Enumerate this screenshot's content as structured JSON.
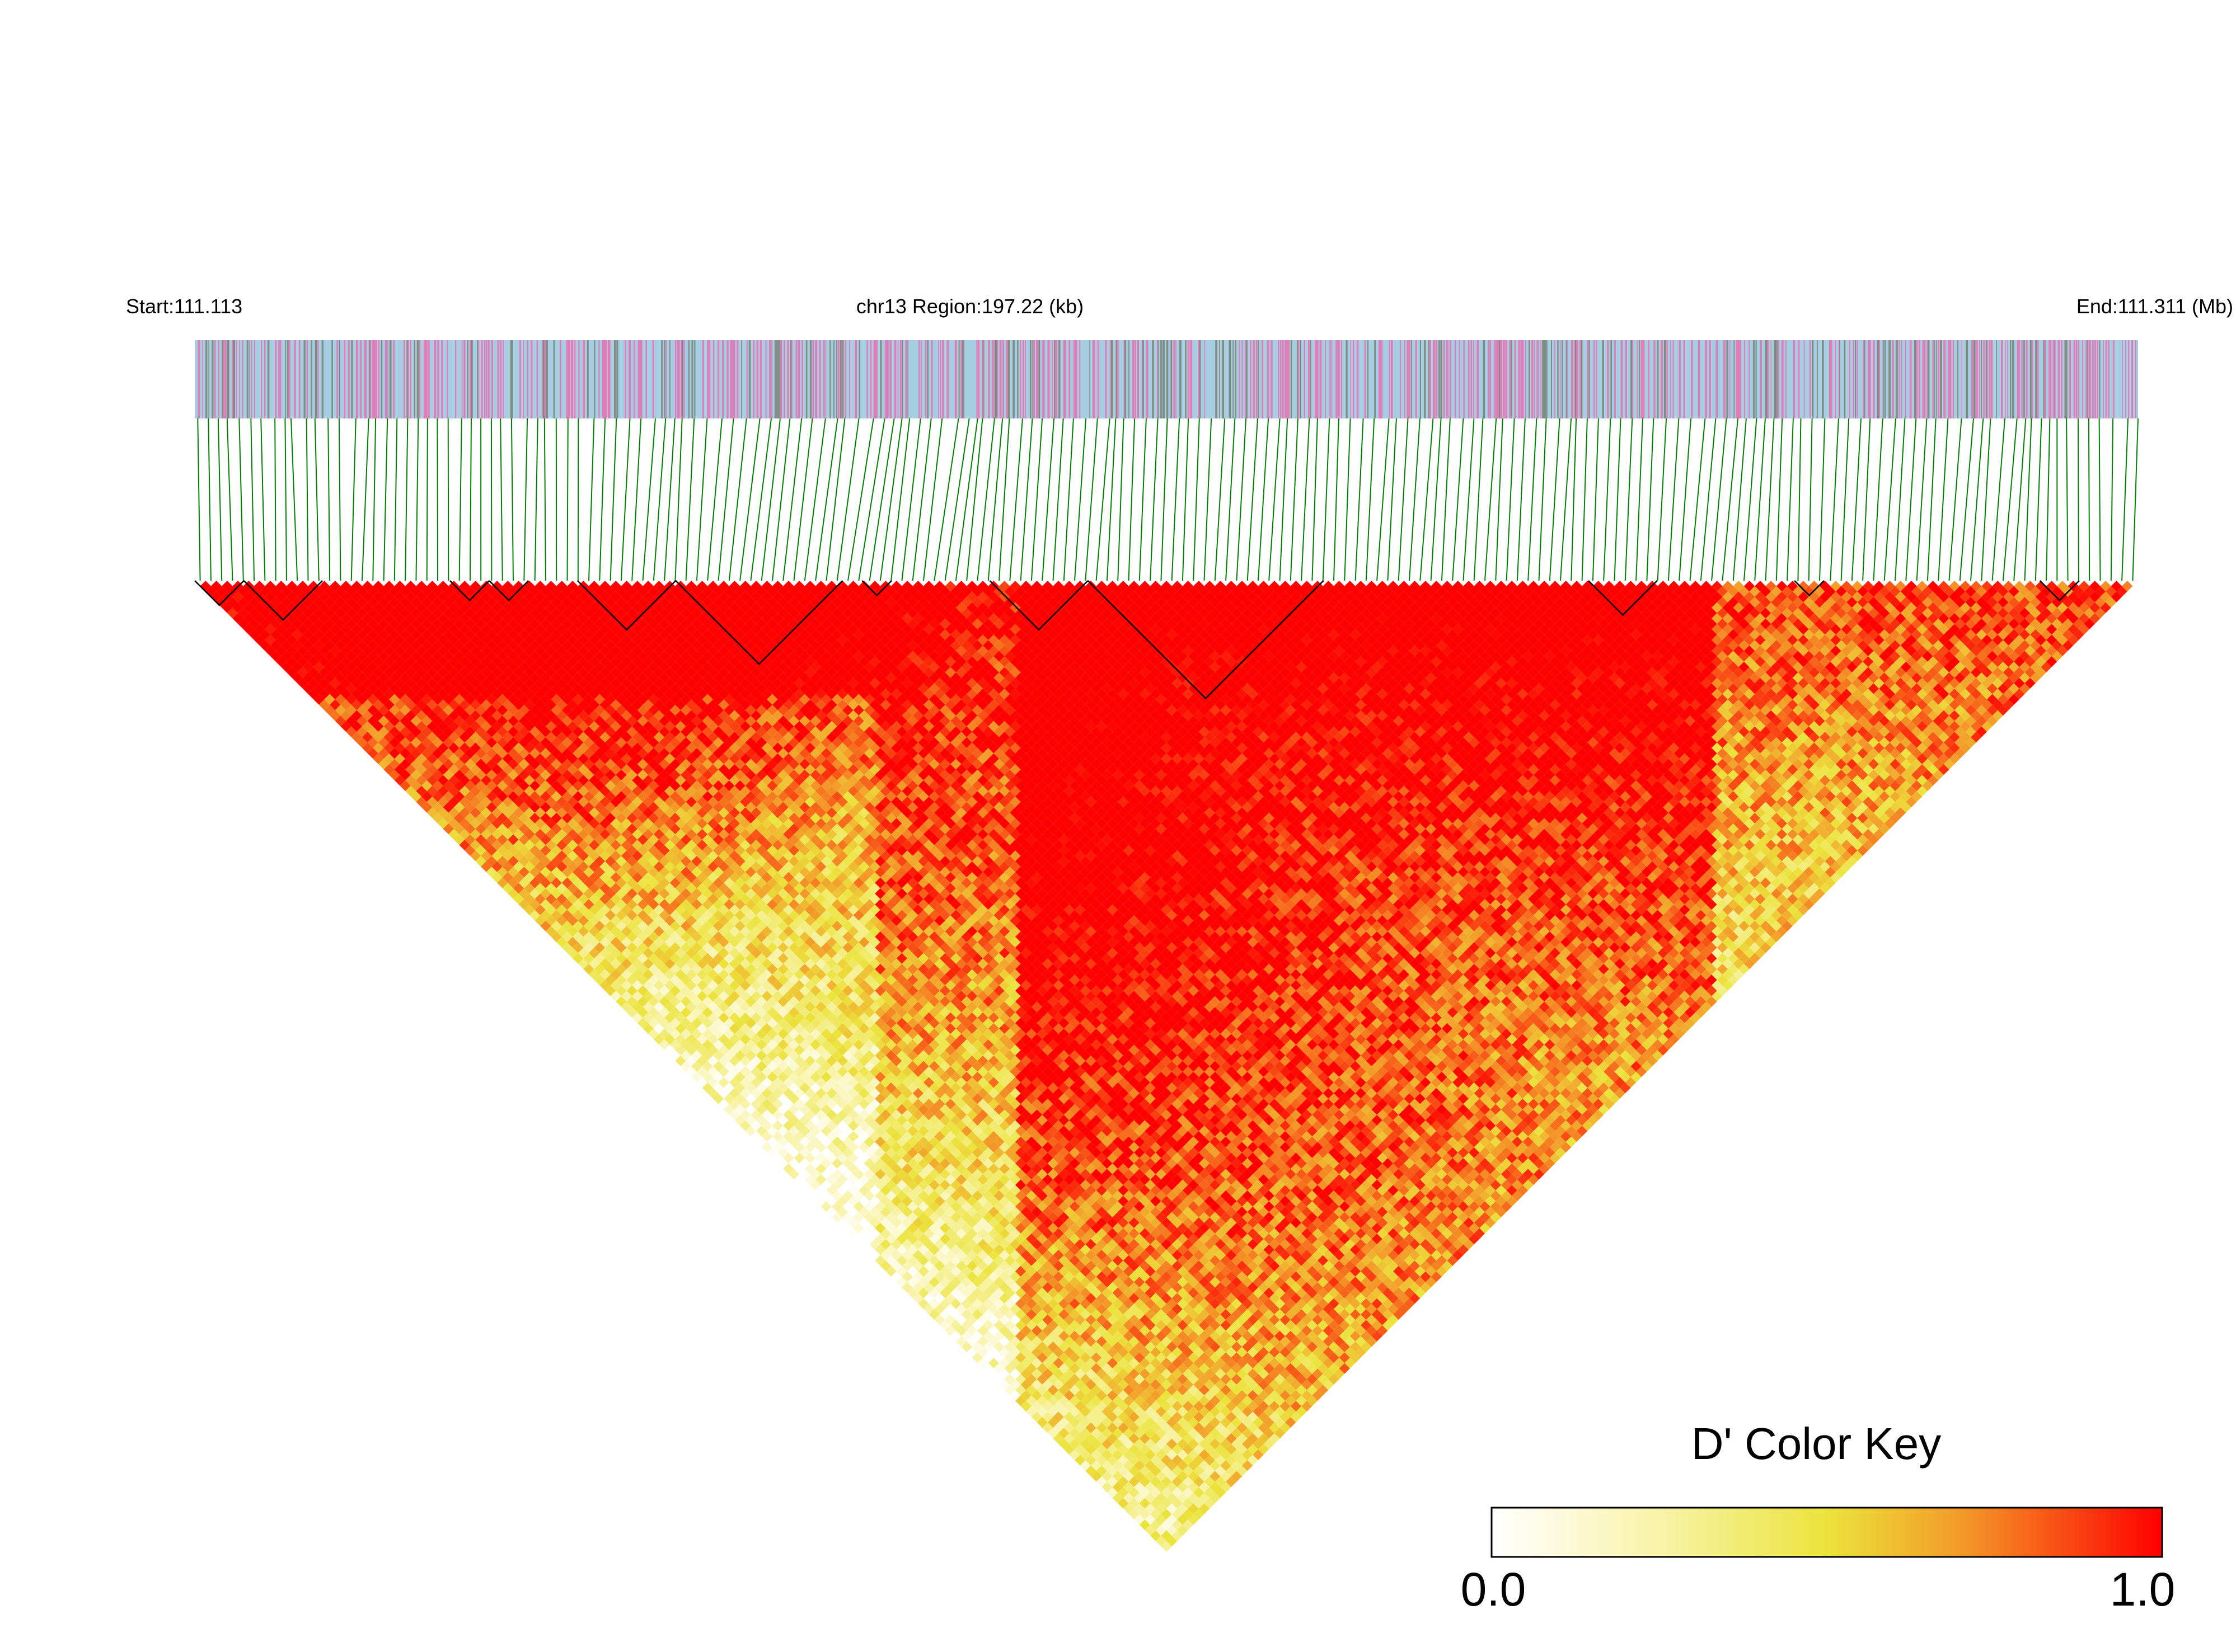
{
  "header": {
    "start_label": "Start:111.113",
    "region_label": "chr13 Region:197.22 (kb)",
    "end_label": "End:111.311 (Mb)"
  },
  "color_key": {
    "title": "D' Color Key",
    "min_label": "0.0",
    "max_label": "1.0",
    "stops": [
      {
        "value": 0.0,
        "color": "#ffffff"
      },
      {
        "value": 0.25,
        "color": "#f8f3a8"
      },
      {
        "value": 0.5,
        "color": "#ebe33c"
      },
      {
        "value": 0.7,
        "color": "#f39a28"
      },
      {
        "value": 1.0,
        "color": "#ff0000"
      }
    ]
  },
  "colors": {
    "track_base": "#a6cee3",
    "track_pink": "#e07cb8",
    "track_gray": "#7f8c7f",
    "connector": "#008000",
    "block_outline": "#000000"
  },
  "chart_data": {
    "type": "heatmap",
    "region_mb": [
      111.113,
      111.311
    ],
    "region_kb": 197.22,
    "chromosome": "chr13",
    "value_range": [
      0.0,
      1.0
    ],
    "haplotype_blocks_approx": [
      [
        111.113,
        111.118
      ],
      [
        111.118,
        111.126
      ],
      [
        111.139,
        111.143
      ],
      [
        111.143,
        111.147
      ],
      [
        111.152,
        111.162
      ],
      [
        111.162,
        111.179
      ],
      [
        111.181,
        111.184
      ],
      [
        111.194,
        111.204
      ],
      [
        111.204,
        111.228
      ],
      [
        111.255,
        111.262
      ],
      [
        111.276,
        111.279
      ],
      [
        111.301,
        111.305
      ]
    ]
  }
}
